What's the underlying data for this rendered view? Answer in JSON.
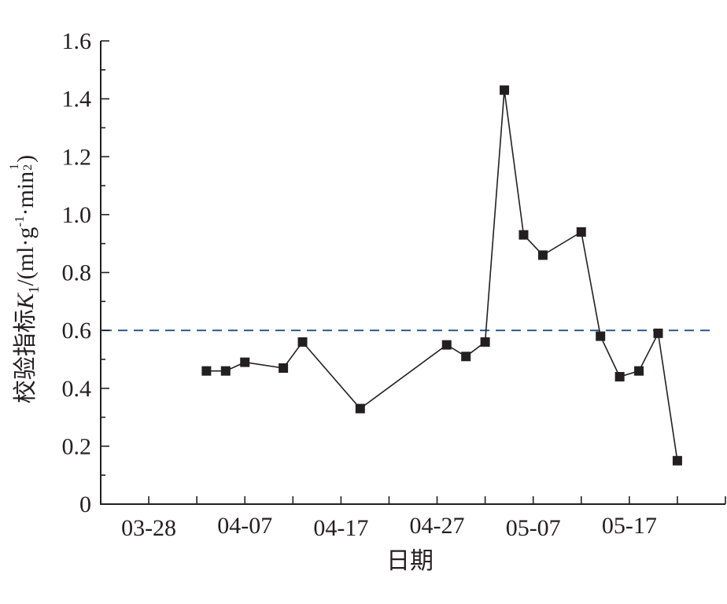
{
  "chart_data": {
    "type": "line",
    "xlabel": "日期",
    "ylabel": {
      "prefix": "校验指标",
      "var": "K",
      "sub": "1",
      "unit_open": "/(ml·g",
      "unit_exp1": "-1",
      "unit_mid": "·min",
      "frac_num": "1",
      "frac_den": "2",
      "unit_close": ")"
    },
    "x_axis": {
      "type": "date",
      "range": [
        "2000-03-23",
        "2000-05-27"
      ],
      "tick_labels": [
        "03-28",
        "04-07",
        "04-17",
        "04-27",
        "05-07",
        "05-17"
      ]
    },
    "y_axis": {
      "range": [
        0,
        1.6
      ],
      "tick_labels": [
        "0",
        "0.2",
        "0.4",
        "0.6",
        "0.8",
        "1.0",
        "1.2",
        "1.4",
        "1.6"
      ]
    },
    "reference_line": {
      "y": 0.6,
      "style": "dashed",
      "color": "#2e5a8c"
    },
    "series": [
      {
        "marker": "square",
        "color": "#231f20",
        "points": [
          {
            "x": "04-03",
            "y": 0.46
          },
          {
            "x": "04-05",
            "y": 0.46
          },
          {
            "x": "04-07",
            "y": 0.49
          },
          {
            "x": "04-11",
            "y": 0.47
          },
          {
            "x": "04-13",
            "y": 0.56
          },
          {
            "x": "04-19",
            "y": 0.33
          },
          {
            "x": "04-28",
            "y": 0.55
          },
          {
            "x": "04-30",
            "y": 0.51
          },
          {
            "x": "05-02",
            "y": 0.56
          },
          {
            "x": "05-04",
            "y": 1.43
          },
          {
            "x": "05-06",
            "y": 0.93
          },
          {
            "x": "05-08",
            "y": 0.86
          },
          {
            "x": "05-12",
            "y": 0.94
          },
          {
            "x": "05-14",
            "y": 0.58
          },
          {
            "x": "05-16",
            "y": 0.44
          },
          {
            "x": "05-18",
            "y": 0.46
          },
          {
            "x": "05-20",
            "y": 0.59
          },
          {
            "x": "05-22",
            "y": 0.15
          }
        ]
      }
    ]
  }
}
